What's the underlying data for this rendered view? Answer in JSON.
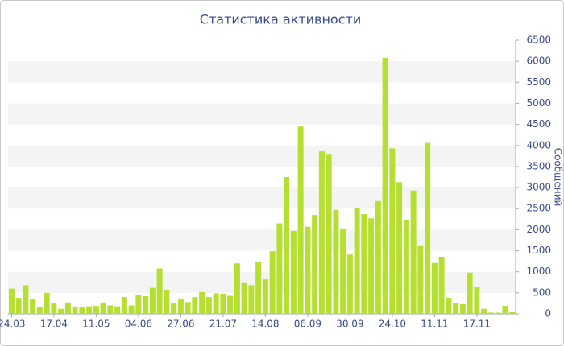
{
  "chart_data": {
    "type": "bar",
    "title": "Статистика активности",
    "y_label": "Сообщений",
    "categories": [
      "24.03",
      null,
      null,
      null,
      null,
      null,
      "17.04",
      null,
      null,
      null,
      null,
      null,
      "11.05",
      null,
      null,
      null,
      null,
      null,
      "04.06",
      null,
      null,
      null,
      null,
      null,
      "27.06",
      null,
      null,
      null,
      null,
      null,
      "21.07",
      null,
      null,
      null,
      null,
      null,
      "14.08",
      null,
      null,
      null,
      null,
      null,
      "06.09",
      null,
      null,
      null,
      null,
      null,
      "30.09",
      null,
      null,
      null,
      null,
      null,
      "24.10",
      null,
      null,
      null,
      null,
      null,
      "11.11",
      null,
      null,
      null,
      null,
      null,
      "17.11",
      null,
      null,
      null,
      null,
      null
    ],
    "values": [
      600,
      380,
      680,
      360,
      170,
      500,
      250,
      120,
      270,
      160,
      160,
      180,
      190,
      270,
      200,
      180,
      400,
      200,
      450,
      420,
      620,
      1080,
      570,
      260,
      360,
      280,
      400,
      520,
      400,
      490,
      480,
      430,
      1200,
      730,
      680,
      1230,
      820,
      1490,
      2150,
      3250,
      1970,
      4450,
      2070,
      2350,
      3860,
      3780,
      2470,
      2030,
      1410,
      2520,
      2370,
      2270,
      2680,
      6080,
      3930,
      3130,
      2240,
      2930,
      1610,
      4060,
      1210,
      1350,
      380,
      250,
      230,
      980,
      630,
      120,
      30,
      30,
      190,
      40
    ],
    "color": "#b5e032",
    "ylim": [
      0,
      6500
    ],
    "yticks": [
      0,
      500,
      1000,
      1500,
      2000,
      2500,
      3000,
      3500,
      4000,
      4500,
      5000,
      5500,
      6000,
      6500
    ],
    "grid": true
  }
}
